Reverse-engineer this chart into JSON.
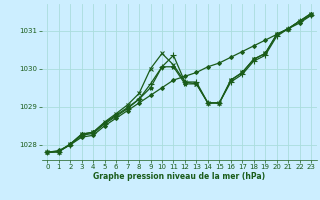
{
  "title": "Graphe pression niveau de la mer (hPa)",
  "background_color": "#cceeff",
  "grid_color": "#aadddd",
  "line_color": "#1a5c1a",
  "xlim": [
    -0.5,
    23.5
  ],
  "ylim": [
    1027.6,
    1031.7
  ],
  "xticks": [
    0,
    1,
    2,
    3,
    4,
    5,
    6,
    7,
    8,
    9,
    10,
    11,
    12,
    13,
    14,
    15,
    16,
    17,
    18,
    19,
    20,
    21,
    22,
    23
  ],
  "yticks": [
    1028,
    1029,
    1030,
    1031
  ],
  "series": [
    {
      "y": [
        1027.8,
        1027.85,
        1028.0,
        1028.2,
        1028.25,
        1028.5,
        1028.7,
        1028.9,
        1029.1,
        1029.3,
        1029.5,
        1029.7,
        1029.8,
        1029.9,
        1030.05,
        1030.15,
        1030.3,
        1030.45,
        1030.6,
        1030.75,
        1030.9,
        1031.05,
        1031.2,
        1031.4
      ],
      "marker": "D",
      "ms": 2.0,
      "lw": 0.9
    },
    {
      "y": [
        1027.8,
        1027.82,
        1028.0,
        1028.25,
        1028.3,
        1028.55,
        1028.75,
        1028.95,
        1029.2,
        1029.6,
        1030.05,
        1030.35,
        1029.65,
        1029.65,
        1029.1,
        1029.1,
        1029.65,
        1029.85,
        1030.2,
        1030.35,
        1030.85,
        1031.05,
        1031.25,
        1031.4
      ],
      "marker": "+",
      "ms": 4.0,
      "lw": 0.9
    },
    {
      "y": [
        1027.8,
        1027.82,
        1028.02,
        1028.28,
        1028.33,
        1028.6,
        1028.82,
        1029.05,
        1029.35,
        1030.0,
        1030.4,
        1030.1,
        1029.65,
        1029.6,
        1029.1,
        1029.1,
        1029.7,
        1029.9,
        1030.25,
        1030.4,
        1030.9,
        1031.05,
        1031.25,
        1031.45
      ],
      "marker": "x",
      "ms": 3.5,
      "lw": 0.9
    },
    {
      "y": [
        1027.8,
        1027.82,
        1028.02,
        1028.28,
        1028.33,
        1028.58,
        1028.78,
        1028.98,
        1029.2,
        1029.5,
        1030.05,
        1030.05,
        1029.6,
        1029.6,
        1029.1,
        1029.1,
        1029.7,
        1029.9,
        1030.25,
        1030.4,
        1030.9,
        1031.05,
        1031.25,
        1031.45
      ],
      "marker": "*",
      "ms": 3.0,
      "lw": 0.9
    }
  ]
}
